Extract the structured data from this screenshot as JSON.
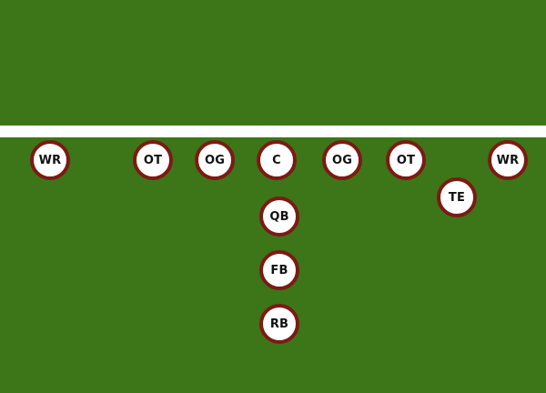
{
  "field": {
    "colors": {
      "grass": "#3c7618",
      "line": "#ffffff",
      "marker_border": "#7c1a14",
      "marker_fill": "#ffffff",
      "marker_text": "#111111"
    }
  },
  "players": [
    {
      "id": "wr-left",
      "label": "WR"
    },
    {
      "id": "ot-left",
      "label": "OT"
    },
    {
      "id": "og-left",
      "label": "OG"
    },
    {
      "id": "c",
      "label": "C"
    },
    {
      "id": "og-right",
      "label": "OG"
    },
    {
      "id": "ot-right",
      "label": "OT"
    },
    {
      "id": "wr-right",
      "label": "WR"
    },
    {
      "id": "te",
      "label": "TE"
    },
    {
      "id": "qb",
      "label": "QB"
    },
    {
      "id": "fb",
      "label": "FB"
    },
    {
      "id": "rb",
      "label": "RB"
    }
  ]
}
